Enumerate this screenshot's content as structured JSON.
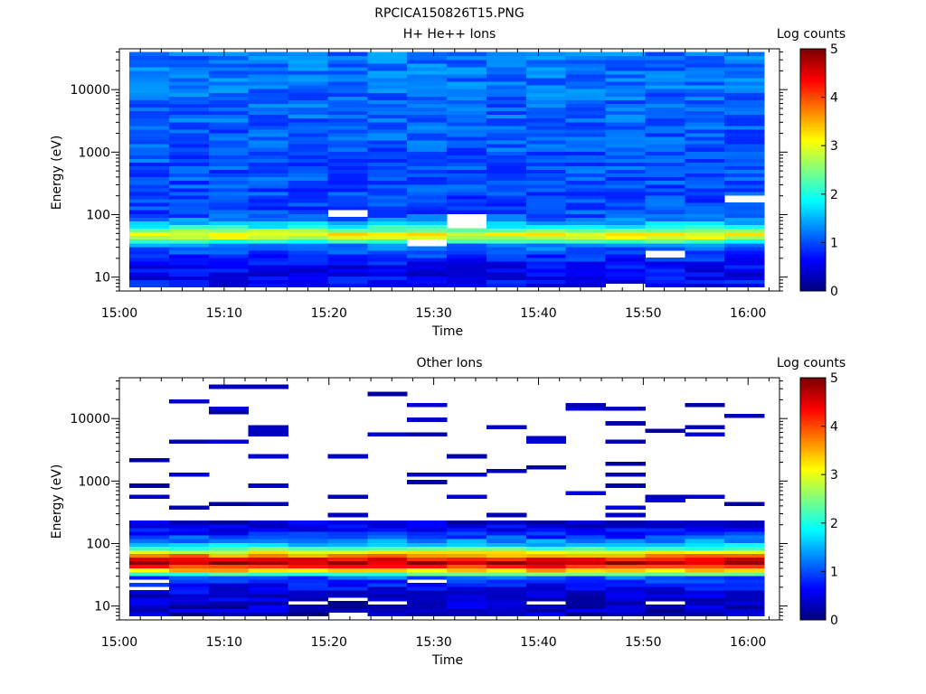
{
  "figure_title": "RPCICA150826T15.PNG",
  "chart_data": [
    {
      "type": "heatmap",
      "title": "H+ He++ Ions",
      "xlabel": "Time",
      "ylabel": "Energy (eV)",
      "x_ticks": [
        "15:00",
        "15:10",
        "15:20",
        "15:30",
        "15:40",
        "15:50",
        "16:00"
      ],
      "x_range": [
        "15:00",
        "16:03"
      ],
      "y_scale": "log",
      "y_ticks": [
        "10",
        "100",
        "1000",
        "10000"
      ],
      "y_range": [
        6,
        45000
      ],
      "colorbar_label": "Log counts",
      "colorbar_ticks": [
        "0",
        "1",
        "2",
        "3",
        "4",
        "5"
      ],
      "value_range": [
        0,
        5
      ],
      "columns": [
        "15:00",
        "15:04",
        "15:08",
        "15:12",
        "15:16",
        "15:20",
        "15:24",
        "15:28",
        "15:32",
        "15:36",
        "15:40",
        "15:44",
        "15:48",
        "15:52",
        "15:56",
        "16:00"
      ],
      "energy_profile_log_counts": [
        [
          8,
          0.7
        ],
        [
          11,
          0.55
        ],
        [
          15,
          0.6
        ],
        [
          20,
          0.8
        ],
        [
          25,
          0.95
        ],
        [
          30,
          1.15
        ],
        [
          35,
          1.35
        ],
        [
          40,
          2.7
        ],
        [
          45,
          2.9
        ],
        [
          52,
          3.2
        ],
        [
          60,
          2.2
        ],
        [
          70,
          1.8
        ],
        [
          80,
          1.3
        ],
        [
          100,
          1.0
        ],
        [
          150,
          0.95
        ],
        [
          300,
          1.0
        ],
        [
          1000,
          1.05
        ],
        [
          3000,
          1.1
        ],
        [
          10000,
          1.15
        ],
        [
          30000,
          1.2
        ]
      ],
      "empty_bins": [
        {
          "time": "15:20",
          "energy": 110
        },
        {
          "time": "15:28",
          "energy": 35
        },
        {
          "time": "15:32",
          "energy": 90
        },
        {
          "time": "15:32",
          "energy": 75
        },
        {
          "time": "15:48",
          "energy": 7
        },
        {
          "time": "15:52",
          "energy": 23
        },
        {
          "time": "16:00",
          "energy": 180
        }
      ]
    },
    {
      "type": "heatmap",
      "title": "Other Ions",
      "xlabel": "Time",
      "ylabel": "Energy (eV)",
      "x_ticks": [
        "15:00",
        "15:10",
        "15:20",
        "15:30",
        "15:40",
        "15:50",
        "16:00"
      ],
      "x_range": [
        "15:00",
        "16:03"
      ],
      "y_scale": "log",
      "y_ticks": [
        "10",
        "100",
        "1000",
        "10000"
      ],
      "y_range": [
        6,
        45000
      ],
      "colorbar_label": "Log counts",
      "colorbar_ticks": [
        "0",
        "1",
        "2",
        "3",
        "4",
        "5"
      ],
      "value_range": [
        0,
        5
      ],
      "columns": [
        "15:00",
        "15:04",
        "15:08",
        "15:12",
        "15:16",
        "15:20",
        "15:24",
        "15:28",
        "15:32",
        "15:36",
        "15:40",
        "15:44",
        "15:48",
        "15:52",
        "15:56",
        "16:00"
      ],
      "energy_profile_log_counts": [
        [
          8,
          0.3
        ],
        [
          11,
          0.35
        ],
        [
          15,
          0.45
        ],
        [
          20,
          0.6
        ],
        [
          25,
          0.8
        ],
        [
          30,
          1.1
        ],
        [
          34,
          2.6
        ],
        [
          38,
          3.4
        ],
        [
          42,
          4.0
        ],
        [
          47,
          4.6
        ],
        [
          52,
          4.8
        ],
        [
          58,
          4.3
        ],
        [
          65,
          3.7
        ],
        [
          75,
          3.0
        ],
        [
          85,
          2.3
        ],
        [
          100,
          1.6
        ],
        [
          130,
          0.9
        ],
        [
          170,
          0.6
        ],
        [
          220,
          0.4
        ]
      ],
      "sparse_high_energy_counts": "isolated single-count bins above ~250 eV",
      "empty_bins": [
        {
          "time": "15:20",
          "energy": 7
        }
      ]
    }
  ]
}
